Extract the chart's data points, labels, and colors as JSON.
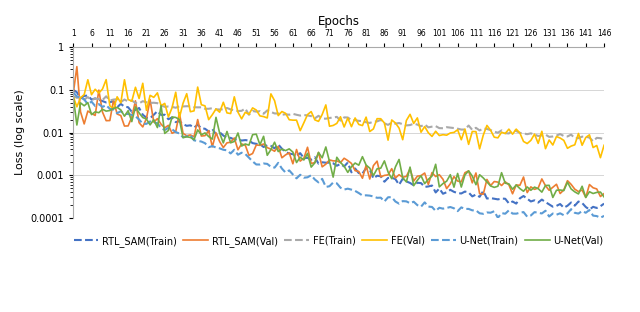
{
  "title": "",
  "xlabel": "Epochs",
  "ylabel": "Loss (log scale)",
  "ylim": [
    0.0001,
    1.0
  ],
  "xlim": [
    1,
    146
  ],
  "xticks": [
    1,
    6,
    11,
    16,
    21,
    26,
    31,
    36,
    41,
    46,
    51,
    56,
    61,
    66,
    71,
    76,
    81,
    86,
    91,
    96,
    101,
    106,
    111,
    116,
    121,
    126,
    131,
    136,
    141,
    146
  ],
  "legend": [
    {
      "label": "RTL_SAM(Train)",
      "color": "#4472C4",
      "linestyle": "dashed",
      "linewidth": 1.5
    },
    {
      "label": "RTL_SAM(Val)",
      "color": "#ED7D31",
      "linestyle": "solid",
      "linewidth": 1.2
    },
    {
      "label": "FE(Train)",
      "color": "#A9A9A9",
      "linestyle": "dashed",
      "linewidth": 1.5
    },
    {
      "label": "FE(Val)",
      "color": "#FFC000",
      "linestyle": "solid",
      "linewidth": 1.2
    },
    {
      "label": "U-Net(Train)",
      "color": "#5B9BD5",
      "linestyle": "dashed",
      "linewidth": 1.5
    },
    {
      "label": "U-Net(Val)",
      "color": "#70AD47",
      "linestyle": "solid",
      "linewidth": 1.2
    }
  ],
  "background_color": "#FFFFFF",
  "grid_color": "#D0D0D0"
}
